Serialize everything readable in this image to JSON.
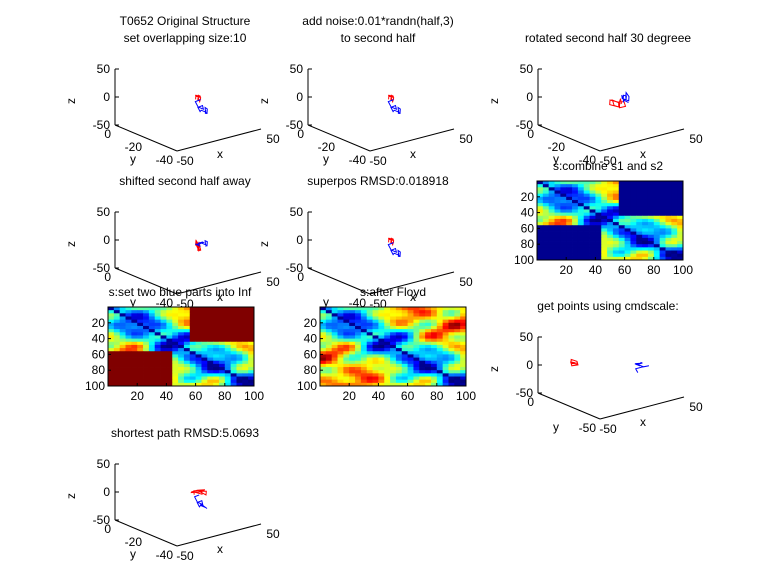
{
  "chart_data": [
    {
      "id": "p1",
      "type": "line3d",
      "title": "T0652 Original Structure",
      "subtitle": "set overlapping size:10",
      "zlabel": "z",
      "ylabel": "y",
      "xlabel": "x",
      "z_ticks": [
        "50",
        "0",
        "-50"
      ],
      "y_ticks": [
        "0",
        "-20",
        "-40"
      ],
      "x_ticks": [
        "-50",
        "50"
      ],
      "series": [
        {
          "color": "#ff0000",
          "x": [
            2,
            6,
            3,
            -2,
            4,
            8,
            5,
            1,
            7,
            10,
            6,
            3,
            -1,
            4,
            9,
            12,
            8,
            5,
            2
          ],
          "y": [
            -30,
            -28,
            -32,
            -34,
            -31,
            -27,
            -29,
            -33,
            -30,
            -26,
            -28,
            -31,
            -35,
            -33,
            -29,
            -27,
            -30,
            -32,
            -34
          ],
          "z": [
            4,
            9,
            13,
            8,
            11,
            6,
            10,
            14,
            7,
            3,
            8,
            12,
            6,
            10,
            7,
            5,
            9,
            12,
            8
          ]
        },
        {
          "color": "#0000ff",
          "x": [
            2,
            -2,
            -5,
            -1,
            3,
            0,
            -4,
            -6,
            -2,
            2,
            5,
            1,
            -3,
            0,
            4
          ],
          "y": [
            -34,
            -32,
            -36,
            -38,
            -35,
            -33,
            -37,
            -39,
            -41,
            -38,
            -36,
            -40,
            -42,
            -39,
            -37
          ],
          "z": [
            8,
            3,
            -3,
            -7,
            -4,
            -9,
            -12,
            -6,
            -10,
            -14,
            -8,
            -5,
            -11,
            -15,
            -12
          ]
        }
      ]
    },
    {
      "id": "p2",
      "type": "line3d",
      "title": "add noise:0.01*randn(half,3)",
      "subtitle": "to second half",
      "zlabel": "z",
      "ylabel": "y",
      "xlabel": "x",
      "z_ticks": [
        "50",
        "0",
        "-50"
      ],
      "y_ticks": [
        "0",
        "-20",
        "-40"
      ],
      "x_ticks": [
        "-50",
        "50"
      ],
      "series": [
        {
          "color": "#ff0000",
          "x": [
            2,
            6,
            3,
            -2,
            4,
            8,
            5,
            1,
            7,
            10,
            6,
            3,
            -1,
            4,
            9,
            12,
            8,
            5,
            2
          ],
          "y": [
            -30,
            -28,
            -32,
            -34,
            -31,
            -27,
            -29,
            -33,
            -30,
            -26,
            -28,
            -31,
            -35,
            -33,
            -29,
            -27,
            -30,
            -32,
            -34
          ],
          "z": [
            4,
            9,
            13,
            8,
            11,
            6,
            10,
            14,
            7,
            3,
            8,
            12,
            6,
            10,
            7,
            5,
            9,
            12,
            8
          ]
        },
        {
          "color": "#0000ff",
          "x": [
            2,
            -2,
            -5,
            -1,
            3,
            0,
            -4,
            -6,
            -2,
            2,
            5,
            1,
            -3,
            0,
            4
          ],
          "y": [
            -34,
            -32,
            -36,
            -38,
            -35,
            -33,
            -37,
            -39,
            -41,
            -38,
            -36,
            -40,
            -42,
            -39,
            -37
          ],
          "z": [
            8,
            3,
            -3,
            -7,
            -4,
            -9,
            -12,
            -6,
            -10,
            -14,
            -8,
            -5,
            -11,
            -15,
            -12
          ]
        }
      ]
    },
    {
      "id": "p3",
      "type": "line3d",
      "title": "rotated second half 30 degreee",
      "subtitle": "",
      "zlabel": "z",
      "ylabel": "y",
      "xlabel": "x",
      "z_ticks": [
        "50",
        "0",
        "-50"
      ],
      "y_ticks": [
        "0",
        "-20",
        "-40"
      ],
      "x_ticks": [
        "-50",
        "50"
      ],
      "series": [
        {
          "color": "#ff0000",
          "x": [
            2,
            -3,
            -8,
            -4,
            1,
            -5,
            -9,
            -3,
            2,
            -1,
            4,
            8,
            3,
            -2,
            5,
            10,
            6,
            1
          ],
          "y": [
            -30,
            -28,
            -32,
            -34,
            -31,
            -27,
            -29,
            -33,
            -30,
            -26,
            -28,
            -31,
            -35,
            -33,
            -29,
            -27,
            -30,
            -32
          ],
          "z": [
            -2,
            1,
            -3,
            -6,
            -1,
            2,
            -4,
            -7,
            -3,
            0,
            -5,
            -2,
            -6,
            -9,
            -4,
            -1,
            -6,
            -3
          ]
        },
        {
          "color": "#0000ff",
          "x": [
            2,
            5,
            9,
            6,
            2,
            7,
            11,
            8,
            4,
            0,
            3,
            -1,
            2
          ],
          "y": [
            -34,
            -32,
            -30,
            -34,
            -36,
            -33,
            -31,
            -35,
            -37,
            -34,
            -32,
            -36,
            -38
          ],
          "z": [
            2,
            6,
            10,
            14,
            9,
            12,
            16,
            13,
            8,
            11,
            15,
            10,
            6
          ]
        }
      ]
    },
    {
      "id": "p4",
      "type": "line3d",
      "title": "shifted second half away",
      "subtitle": "",
      "zlabel": "z",
      "ylabel": "y",
      "xlabel": "x",
      "z_ticks": [
        "50",
        "0",
        "-50"
      ],
      "y_ticks": [
        "0",
        "-40"
      ],
      "x_ticks": [
        "-50",
        "50"
      ],
      "series": [
        {
          "color": "#ff0000",
          "x": [
            2,
            6,
            3,
            -2,
            4,
            8,
            5,
            1,
            7,
            10,
            6,
            3,
            -1,
            4,
            9,
            12,
            8,
            5,
            2
          ],
          "y": [
            -30,
            -28,
            -32,
            -34,
            -31,
            -27,
            -29,
            -33,
            -30,
            -26,
            -28,
            -31,
            -35,
            -33,
            -29,
            -27,
            -30,
            -32,
            -34
          ],
          "z": [
            -2,
            2,
            -4,
            -8,
            -3,
            1,
            -5,
            -9,
            -4,
            0,
            -6,
            -3,
            -7,
            -10,
            -5,
            -2,
            -6,
            -9,
            -4
          ]
        },
        {
          "color": "#0000ff",
          "x": [
            2,
            -2,
            -5,
            -1,
            3,
            0,
            -4,
            -6,
            -2,
            2,
            5,
            1,
            -3,
            0,
            4
          ],
          "y": [
            -34,
            -32,
            -36,
            -38,
            -35,
            -33,
            -37,
            -39,
            -41,
            -38,
            -36,
            -40,
            -42,
            -39,
            -37
          ],
          "z": [
            0,
            4,
            9,
            14,
            10,
            6,
            11,
            16,
            12,
            8,
            13,
            17,
            12,
            7,
            3
          ]
        }
      ]
    },
    {
      "id": "p5",
      "type": "line3d",
      "title": "superpos RMSD:0.018918",
      "subtitle": "",
      "zlabel": "z",
      "ylabel": "y",
      "xlabel": "x",
      "z_ticks": [
        "50",
        "0",
        "-50"
      ],
      "y_ticks": [
        "0",
        "-40"
      ],
      "x_ticks": [
        "-50",
        "50"
      ],
      "series": [
        {
          "color": "#ff0000",
          "x": [
            2,
            6,
            3,
            -2,
            4,
            8,
            5,
            1,
            7,
            10,
            6,
            3,
            -1,
            4,
            9,
            12,
            8,
            5,
            2
          ],
          "y": [
            -30,
            -28,
            -32,
            -34,
            -31,
            -27,
            -29,
            -33,
            -30,
            -26,
            -28,
            -31,
            -35,
            -33,
            -29,
            -27,
            -30,
            -32,
            -34
          ],
          "z": [
            4,
            9,
            13,
            8,
            11,
            6,
            10,
            14,
            7,
            3,
            8,
            12,
            6,
            10,
            7,
            5,
            9,
            12,
            8
          ]
        },
        {
          "color": "#0000ff",
          "x": [
            2,
            -2,
            -5,
            -1,
            3,
            0,
            -4,
            -6,
            -2,
            2,
            5,
            1,
            -3,
            0,
            4
          ],
          "y": [
            -34,
            -32,
            -36,
            -38,
            -35,
            -33,
            -37,
            -39,
            -41,
            -38,
            -36,
            -40,
            -42,
            -39,
            -37
          ],
          "z": [
            8,
            3,
            -3,
            -7,
            -4,
            -9,
            -12,
            -6,
            -10,
            -14,
            -8,
            -5,
            -11,
            -15,
            -12
          ]
        }
      ]
    },
    {
      "id": "p6",
      "type": "heatmap",
      "title": "s:combine s1 and s2",
      "x_ticks": [
        "20",
        "40",
        "60",
        "80",
        "100"
      ],
      "y_ticks": [
        "20",
        "40",
        "60",
        "80",
        "100"
      ],
      "size": 100,
      "masked_blocks": [
        {
          "rows": [
            1,
            45
          ],
          "cols": [
            56,
            100
          ]
        },
        {
          "rows": [
            56,
            100
          ],
          "cols": [
            1,
            45
          ]
        }
      ],
      "mask_color": "#00008f"
    },
    {
      "id": "p7",
      "type": "heatmap",
      "title": "s:set two blue parts into Inf",
      "x_ticks": [
        "20",
        "40",
        "60",
        "80",
        "100"
      ],
      "y_ticks": [
        "20",
        "40",
        "60",
        "80",
        "100"
      ],
      "size": 100,
      "masked_blocks": [
        {
          "rows": [
            1,
            45
          ],
          "cols": [
            56,
            100
          ]
        },
        {
          "rows": [
            56,
            100
          ],
          "cols": [
            1,
            45
          ]
        }
      ],
      "mask_color": "#800000"
    },
    {
      "id": "p8",
      "type": "heatmap",
      "title": "s:after Floyd",
      "x_ticks": [
        "20",
        "40",
        "60",
        "80",
        "100"
      ],
      "y_ticks": [
        "20",
        "40",
        "60",
        "80",
        "100"
      ],
      "size": 100,
      "masked_blocks": [],
      "mask_color": ""
    },
    {
      "id": "p9",
      "type": "line3d",
      "title": "get points using cmdscale:",
      "subtitle": "",
      "zlabel": "z",
      "ylabel": "y",
      "xlabel": "x",
      "z_ticks": [
        "50",
        "0",
        "-50"
      ],
      "y_ticks": [
        "0",
        "-50"
      ],
      "x_ticks": [
        "-50",
        "50"
      ],
      "series": [
        {
          "color": "#ff0000",
          "x": [
            -30,
            -27,
            -24,
            -28,
            -31,
            -26,
            -22,
            -25,
            -29,
            -33,
            -28,
            -24
          ],
          "y": [
            -10,
            -12,
            -9,
            -8,
            -11,
            -13,
            -10,
            -7,
            -9,
            -12,
            -14,
            -11
          ],
          "z": [
            2,
            4,
            1,
            3,
            5,
            2,
            4,
            6,
            3,
            1,
            3,
            5
          ]
        },
        {
          "color": "#0000ff",
          "x": [
            22,
            18,
            14,
            17,
            21,
            25,
            20,
            15,
            12,
            16,
            20,
            24,
            19,
            14,
            10
          ],
          "y": [
            -36,
            -34,
            -38,
            -40,
            -37,
            -35,
            -39,
            -41,
            -38,
            -36,
            -40,
            -42,
            -39,
            -37,
            -41
          ],
          "z": [
            6,
            10,
            14,
            18,
            15,
            11,
            16,
            20,
            17,
            13,
            9,
            12,
            8,
            4,
            2
          ]
        }
      ]
    },
    {
      "id": "p10",
      "type": "line3d",
      "title": "shortest path RMSD:5.0693",
      "subtitle": "",
      "zlabel": "z",
      "ylabel": "y",
      "xlabel": "x",
      "z_ticks": [
        "50",
        "0",
        "-50"
      ],
      "y_ticks": [
        "0",
        "-20",
        "-40"
      ],
      "x_ticks": [
        "-50",
        "50"
      ],
      "series": [
        {
          "color": "#ff0000",
          "x": [
            0,
            3,
            7,
            4,
            -1,
            2,
            6,
            10,
            7,
            3,
            0,
            4,
            8,
            12,
            9
          ],
          "y": [
            -30,
            -28,
            -32,
            -34,
            -31,
            -27,
            -29,
            -33,
            -30,
            -26,
            -28,
            -31,
            -35,
            -33,
            -29
          ],
          "z": [
            4,
            9,
            13,
            8,
            11,
            6,
            10,
            14,
            7,
            3,
            8,
            12,
            6,
            10,
            7
          ]
        },
        {
          "color": "#0000ff",
          "x": [
            0,
            -3,
            -6,
            -2,
            2,
            -1,
            -5,
            -7,
            -3,
            1,
            -2,
            -6,
            -3
          ],
          "y": [
            -34,
            -32,
            -36,
            -38,
            -35,
            -33,
            -37,
            -39,
            -41,
            -38,
            -36,
            -40,
            -42
          ],
          "z": [
            8,
            3,
            -3,
            -7,
            -4,
            -9,
            -12,
            -6,
            -10,
            -14,
            -8,
            -5,
            -11
          ]
        }
      ]
    }
  ]
}
